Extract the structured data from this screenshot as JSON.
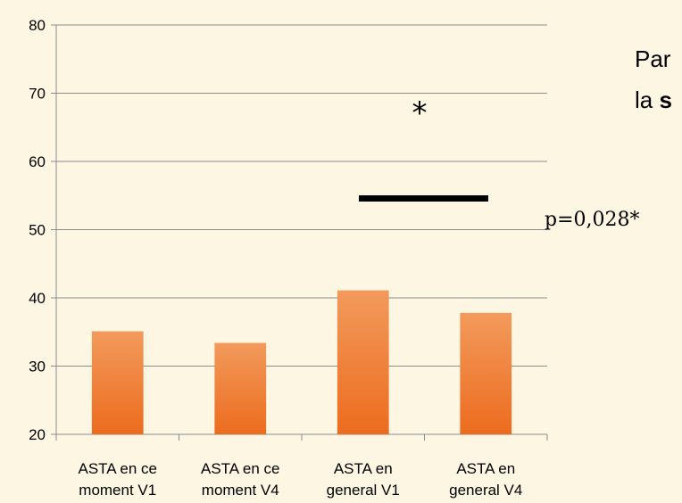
{
  "chart_data": {
    "type": "bar",
    "categories": [
      [
        "ASTA en ce",
        "moment V1"
      ],
      [
        "ASTA en ce",
        "moment V4"
      ],
      [
        "ASTA en",
        "general V1"
      ],
      [
        "ASTA en",
        "general V4"
      ]
    ],
    "values": [
      35.1,
      33.4,
      41.1,
      37.8
    ],
    "ylim": [
      20,
      80
    ],
    "yticks": [
      "20",
      "30",
      "40",
      "50",
      "60",
      "70",
      "80"
    ],
    "grid": true,
    "bar_color": "#f07a2e",
    "title": "",
    "xlabel": "",
    "ylabel": "",
    "annotations": {
      "significance_star": "*",
      "p_value": "p=0,028*"
    }
  },
  "side_text": {
    "line1": "Par",
    "line2_plain": "la ",
    "line2_bold": "s"
  }
}
